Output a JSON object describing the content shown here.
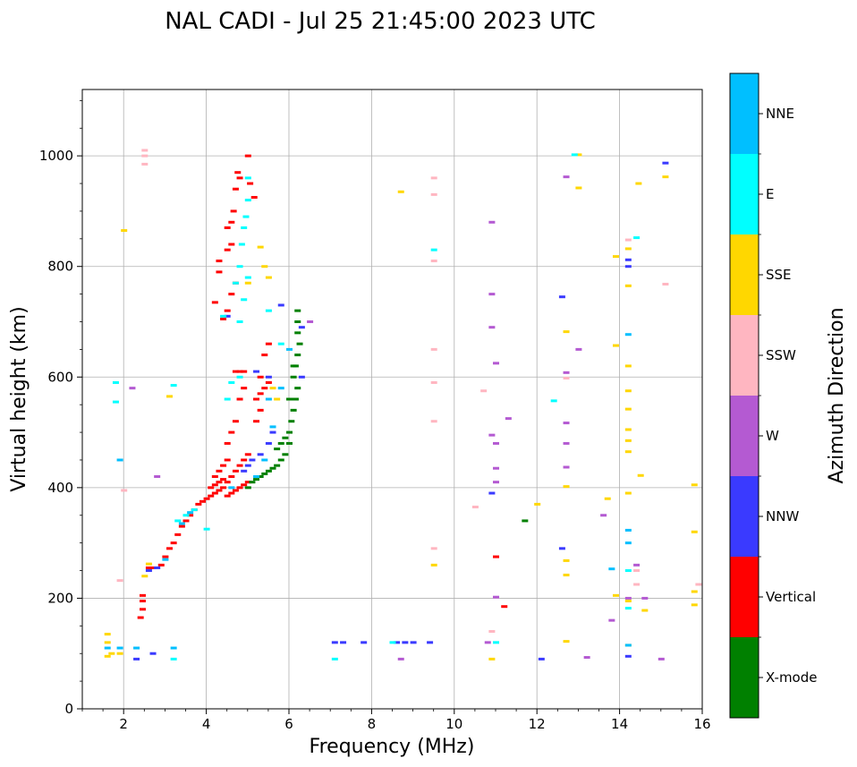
{
  "chart_data": {
    "type": "scatter",
    "title": "NAL CADI - Jul 25 21:45:00 2023 UTC",
    "xlabel": "Frequency (MHz)",
    "ylabel": "Virtual height (km)",
    "xlim": [
      1,
      16
    ],
    "ylim": [
      0,
      1120
    ],
    "xticks": [
      2,
      4,
      6,
      8,
      10,
      12,
      14,
      16
    ],
    "yticks": [
      0,
      200,
      400,
      600,
      800,
      1000
    ],
    "grid": true,
    "colorbar": {
      "label": "Azimuth Direction",
      "categories": [
        {
          "name": "X-mode",
          "color": "#008000"
        },
        {
          "name": "Vertical",
          "color": "#ff0000"
        },
        {
          "name": "NNW",
          "color": "#3a3aff"
        },
        {
          "name": "W",
          "color": "#b45ad2"
        },
        {
          "name": "SSW",
          "color": "#ffb6c1"
        },
        {
          "name": "SSE",
          "color": "#ffd700"
        },
        {
          "name": "E",
          "color": "#00ffff"
        },
        {
          "name": "NNE",
          "color": "#00bfff"
        }
      ]
    },
    "series": [
      {
        "name": "Vertical",
        "points": [
          [
            2.4,
            165
          ],
          [
            2.45,
            180
          ],
          [
            2.45,
            195
          ],
          [
            2.45,
            205
          ],
          [
            2.6,
            255
          ],
          [
            2.7,
            255
          ],
          [
            2.9,
            260
          ],
          [
            3.0,
            275
          ],
          [
            3.1,
            290
          ],
          [
            3.2,
            300
          ],
          [
            3.3,
            315
          ],
          [
            3.4,
            330
          ],
          [
            3.5,
            340
          ],
          [
            3.6,
            350
          ],
          [
            3.7,
            360
          ],
          [
            3.8,
            370
          ],
          [
            3.9,
            375
          ],
          [
            4.0,
            380
          ],
          [
            4.1,
            385
          ],
          [
            4.2,
            390
          ],
          [
            4.3,
            395
          ],
          [
            4.4,
            400
          ],
          [
            4.5,
            410
          ],
          [
            4.6,
            420
          ],
          [
            4.7,
            430
          ],
          [
            4.8,
            440
          ],
          [
            4.9,
            450
          ],
          [
            5.0,
            460
          ],
          [
            4.5,
            385
          ],
          [
            4.6,
            390
          ],
          [
            4.7,
            395
          ],
          [
            4.8,
            400
          ],
          [
            4.9,
            405
          ],
          [
            5.0,
            410
          ],
          [
            4.5,
            480
          ],
          [
            4.6,
            500
          ],
          [
            4.7,
            520
          ],
          [
            4.8,
            560
          ],
          [
            4.9,
            580
          ],
          [
            4.7,
            610
          ],
          [
            4.8,
            610
          ],
          [
            4.9,
            610
          ],
          [
            5.3,
            600
          ],
          [
            5.4,
            640
          ],
          [
            5.5,
            660
          ],
          [
            4.2,
            735
          ],
          [
            4.4,
            705
          ],
          [
            4.5,
            720
          ],
          [
            4.6,
            750
          ],
          [
            4.7,
            770
          ],
          [
            4.3,
            790
          ],
          [
            4.3,
            810
          ],
          [
            4.5,
            830
          ],
          [
            4.6,
            840
          ],
          [
            4.5,
            870
          ],
          [
            4.6,
            880
          ],
          [
            4.65,
            900
          ],
          [
            4.7,
            940
          ],
          [
            4.75,
            970
          ],
          [
            4.8,
            960
          ],
          [
            5.0,
            1000
          ],
          [
            5.05,
            950
          ],
          [
            5.15,
            925
          ],
          [
            4.1,
            400
          ],
          [
            4.2,
            405
          ],
          [
            4.3,
            410
          ],
          [
            4.4,
            415
          ],
          [
            4.2,
            420
          ],
          [
            4.3,
            430
          ],
          [
            4.4,
            440
          ],
          [
            4.5,
            450
          ],
          [
            5.2,
            560
          ],
          [
            5.3,
            570
          ],
          [
            5.4,
            580
          ],
          [
            5.5,
            590
          ],
          [
            5.2,
            520
          ],
          [
            5.3,
            540
          ],
          [
            11.0,
            275
          ],
          [
            11.2,
            185
          ]
        ]
      },
      {
        "name": "X-mode",
        "points": [
          [
            5.0,
            400
          ],
          [
            5.1,
            410
          ],
          [
            5.2,
            415
          ],
          [
            5.3,
            420
          ],
          [
            5.4,
            425
          ],
          [
            5.5,
            430
          ],
          [
            5.6,
            435
          ],
          [
            5.7,
            440
          ],
          [
            5.8,
            450
          ],
          [
            5.9,
            460
          ],
          [
            5.7,
            470
          ],
          [
            5.8,
            480
          ],
          [
            5.9,
            490
          ],
          [
            6.0,
            500
          ],
          [
            6.05,
            520
          ],
          [
            6.1,
            540
          ],
          [
            6.15,
            560
          ],
          [
            6.2,
            580
          ],
          [
            6.1,
            600
          ],
          [
            6.15,
            620
          ],
          [
            6.2,
            640
          ],
          [
            6.25,
            660
          ],
          [
            6.2,
            680
          ],
          [
            6.2,
            700
          ],
          [
            6.2,
            720
          ],
          [
            6.0,
            480
          ],
          [
            6.0,
            560
          ],
          [
            6.1,
            620
          ],
          [
            11.7,
            340
          ]
        ]
      },
      {
        "name": "NNW",
        "points": [
          [
            2.6,
            250
          ],
          [
            2.8,
            255
          ],
          [
            4.9,
            430
          ],
          [
            5.0,
            440
          ],
          [
            5.1,
            450
          ],
          [
            5.3,
            460
          ],
          [
            5.5,
            480
          ],
          [
            5.6,
            500
          ],
          [
            6.3,
            690
          ],
          [
            6.3,
            600
          ],
          [
            5.5,
            600
          ],
          [
            5.8,
            730
          ],
          [
            4.5,
            710
          ],
          [
            5.2,
            610
          ],
          [
            7.1,
            120
          ],
          [
            7.3,
            120
          ],
          [
            7.8,
            120
          ],
          [
            8.6,
            120
          ],
          [
            8.8,
            120
          ],
          [
            9.0,
            120
          ],
          [
            9.4,
            120
          ],
          [
            10.9,
            390
          ],
          [
            12.1,
            90
          ],
          [
            12.6,
            290
          ],
          [
            12.6,
            745
          ],
          [
            14.2,
            95
          ],
          [
            14.2,
            812
          ],
          [
            14.2,
            800
          ],
          [
            15.1,
            987
          ],
          [
            2.3,
            90
          ],
          [
            2.7,
            100
          ]
        ]
      },
      {
        "name": "W",
        "points": [
          [
            2.8,
            420
          ],
          [
            10.8,
            120
          ],
          [
            10.9,
            880
          ],
          [
            10.9,
            750
          ],
          [
            10.9,
            690
          ],
          [
            11.0,
            625
          ],
          [
            11.0,
            480
          ],
          [
            11.3,
            525
          ],
          [
            10.9,
            495
          ],
          [
            11.0,
            435
          ],
          [
            11.0,
            410
          ],
          [
            11.0,
            202
          ],
          [
            12.7,
            608
          ],
          [
            12.7,
            517
          ],
          [
            12.7,
            480
          ],
          [
            12.7,
            437
          ],
          [
            12.7,
            962
          ],
          [
            13.0,
            650
          ],
          [
            13.2,
            93
          ],
          [
            13.6,
            350
          ],
          [
            13.8,
            160
          ],
          [
            14.2,
            200
          ],
          [
            14.4,
            260
          ],
          [
            14.6,
            200
          ],
          [
            15.0,
            90
          ],
          [
            8.7,
            90
          ],
          [
            6.5,
            700
          ],
          [
            2.2,
            580
          ]
        ]
      },
      {
        "name": "SSW",
        "points": [
          [
            2.5,
            1010
          ],
          [
            2.5,
            1000
          ],
          [
            2.5,
            985
          ],
          [
            9.5,
            960
          ],
          [
            9.5,
            930
          ],
          [
            9.5,
            810
          ],
          [
            9.5,
            650
          ],
          [
            9.5,
            590
          ],
          [
            9.5,
            520
          ],
          [
            9.5,
            290
          ],
          [
            10.5,
            365
          ],
          [
            10.7,
            575
          ],
          [
            10.9,
            140
          ],
          [
            12.7,
            598
          ],
          [
            14.2,
            848
          ],
          [
            14.4,
            250
          ],
          [
            14.4,
            225
          ],
          [
            15.1,
            768
          ],
          [
            15.9,
            225
          ],
          [
            2.0,
            395
          ],
          [
            1.9,
            232
          ],
          [
            2.3,
            110
          ]
        ]
      },
      {
        "name": "SSE",
        "points": [
          [
            1.6,
            135
          ],
          [
            1.6,
            120
          ],
          [
            1.6,
            95
          ],
          [
            1.7,
            100
          ],
          [
            1.9,
            100
          ],
          [
            2.5,
            240
          ],
          [
            2.6,
            262
          ],
          [
            3.1,
            565
          ],
          [
            5.0,
            770
          ],
          [
            5.3,
            835
          ],
          [
            5.4,
            800
          ],
          [
            5.5,
            780
          ],
          [
            5.6,
            580
          ],
          [
            5.7,
            560
          ],
          [
            8.7,
            935
          ],
          [
            9.5,
            260
          ],
          [
            10.9,
            90
          ],
          [
            12.0,
            370
          ],
          [
            12.7,
            682
          ],
          [
            12.7,
            402
          ],
          [
            12.7,
            268
          ],
          [
            12.7,
            242
          ],
          [
            12.7,
            122
          ],
          [
            13.0,
            942
          ],
          [
            13.0,
            1002
          ],
          [
            13.7,
            380
          ],
          [
            13.9,
            657
          ],
          [
            13.9,
            818
          ],
          [
            13.9,
            205
          ],
          [
            14.2,
            832
          ],
          [
            14.2,
            765
          ],
          [
            14.2,
            620
          ],
          [
            14.2,
            575
          ],
          [
            14.2,
            542
          ],
          [
            14.2,
            505
          ],
          [
            14.2,
            485
          ],
          [
            14.2,
            465
          ],
          [
            14.2,
            390
          ],
          [
            14.2,
            195
          ],
          [
            14.2,
            115
          ],
          [
            14.45,
            950
          ],
          [
            14.5,
            422
          ],
          [
            14.6,
            178
          ],
          [
            15.1,
            962
          ],
          [
            15.8,
            405
          ],
          [
            15.8,
            320
          ],
          [
            15.8,
            212
          ],
          [
            15.8,
            188
          ],
          [
            2.0,
            865
          ]
        ]
      },
      {
        "name": "E",
        "points": [
          [
            1.8,
            590
          ],
          [
            1.8,
            555
          ],
          [
            3.2,
            585
          ],
          [
            3.3,
            340
          ],
          [
            3.5,
            350
          ],
          [
            3.7,
            360
          ],
          [
            4.0,
            325
          ],
          [
            4.4,
            710
          ],
          [
            4.5,
            560
          ],
          [
            4.6,
            590
          ],
          [
            4.7,
            770
          ],
          [
            4.8,
            800
          ],
          [
            4.85,
            840
          ],
          [
            4.9,
            870
          ],
          [
            4.95,
            890
          ],
          [
            5.0,
            920
          ],
          [
            5.0,
            960
          ],
          [
            4.9,
            740
          ],
          [
            4.8,
            700
          ],
          [
            4.8,
            600
          ],
          [
            5.0,
            780
          ],
          [
            5.5,
            720
          ],
          [
            5.8,
            660
          ],
          [
            7.1,
            90
          ],
          [
            8.5,
            120
          ],
          [
            9.5,
            830
          ],
          [
            11.0,
            120
          ],
          [
            12.4,
            557
          ],
          [
            12.9,
            1002
          ],
          [
            14.2,
            182
          ],
          [
            14.2,
            250
          ],
          [
            14.4,
            852
          ],
          [
            3.2,
            90
          ]
        ]
      },
      {
        "name": "NNE",
        "points": [
          [
            1.6,
            110
          ],
          [
            2.3,
            110
          ],
          [
            3.2,
            110
          ],
          [
            3.0,
            270
          ],
          [
            3.4,
            335
          ],
          [
            3.6,
            355
          ],
          [
            4.6,
            400
          ],
          [
            5.2,
            420
          ],
          [
            5.4,
            450
          ],
          [
            5.6,
            510
          ],
          [
            5.8,
            580
          ],
          [
            6.0,
            650
          ],
          [
            5.5,
            560
          ],
          [
            13.8,
            253
          ],
          [
            14.2,
            677
          ],
          [
            14.2,
            323
          ],
          [
            14.2,
            300
          ],
          [
            14.2,
            115
          ],
          [
            1.9,
            450
          ],
          [
            1.9,
            110
          ]
        ]
      }
    ]
  }
}
